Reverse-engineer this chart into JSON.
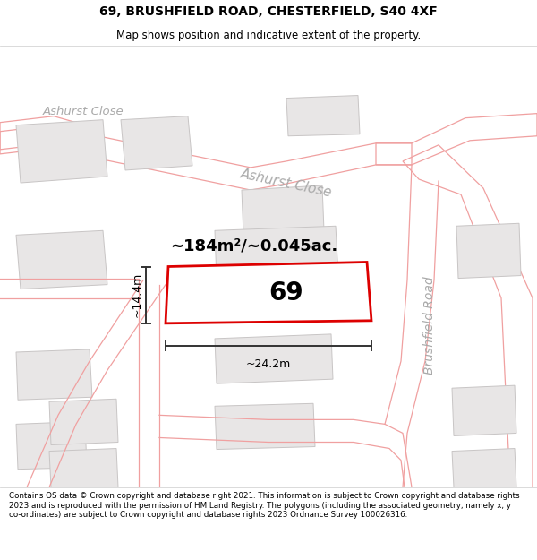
{
  "title_line1": "69, BRUSHFIELD ROAD, CHESTERFIELD, S40 4XF",
  "title_line2": "Map shows position and indicative extent of the property.",
  "footer_text": "Contains OS data © Crown copyright and database right 2021. This information is subject to Crown copyright and database rights 2023 and is reproduced with the permission of HM Land Registry. The polygons (including the associated geometry, namely x, y co-ordinates) are subject to Crown copyright and database rights 2023 Ordnance Survey 100026316.",
  "map_bg": "#f7f6f6",
  "road_line_color": "#f0a0a0",
  "road_line_lw": 0.9,
  "building_fill": "#e8e6e6",
  "building_edge": "#c8c5c5",
  "building_lw": 0.7,
  "plot69_fill": "#ffffff",
  "highlight_edge": "#dd0000",
  "highlight_lw": 2.0,
  "label_69": "69",
  "area_text": "~184m²/~0.045ac.",
  "dim_width": "~24.2m",
  "dim_height": "~14.4m",
  "road_label_brushfield": "Brushfield Road",
  "road_label_ashurst_main": "Ashurst Close",
  "road_label_ashurst_top": "Ashurst Close",
  "dim_line_color": "#333333",
  "dim_lw": 1.4,
  "road_label_color": "#aaaaaa",
  "title_fontsize": 10,
  "subtitle_fontsize": 8.5,
  "footer_fontsize": 6.3,
  "area_fontsize": 13,
  "label69_fontsize": 20,
  "dim_fontsize": 9
}
